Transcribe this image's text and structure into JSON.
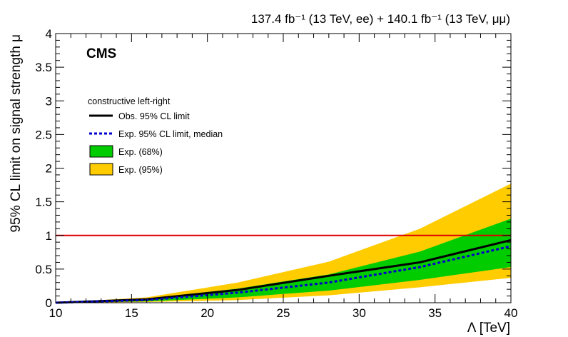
{
  "header": {
    "luminosity_label": "137.4 fb⁻¹ (13 TeV, ee) + 140.1 fb⁻¹ (13 TeV, μμ)",
    "experiment_label": "CMS"
  },
  "chart_data": {
    "type": "line",
    "title": "",
    "xlabel": "Λ [TeV]",
    "ylabel": "95% CL limit on signal strength μ",
    "xlim": [
      10,
      40
    ],
    "ylim": [
      0,
      4
    ],
    "x_ticks": [
      "10",
      "15",
      "20",
      "25",
      "30",
      "35",
      "40"
    ],
    "y_ticks": [
      "0",
      "0.5",
      "1",
      "1.5",
      "2",
      "2.5",
      "3",
      "3.5",
      "4"
    ],
    "grid": false,
    "legend_placement": "upper-left",
    "legend_header": "constructive left-right",
    "x": [
      10,
      16,
      22,
      28,
      34,
      40
    ],
    "series": [
      {
        "name": "Obs. 95% CL limit",
        "style": "solid",
        "color": "#000000",
        "values": [
          0.0,
          0.05,
          0.19,
          0.4,
          0.6,
          0.93
        ]
      },
      {
        "name": "Exp. 95% CL limit, median",
        "style": "dotted",
        "color": "#0000cc",
        "values": [
          0.0,
          0.04,
          0.15,
          0.3,
          0.53,
          0.84
        ]
      }
    ],
    "bands": [
      {
        "name": "Exp. (68%)",
        "color": "#00cc00",
        "low": [
          0.0,
          0.02,
          0.08,
          0.18,
          0.34,
          0.53
        ],
        "high": [
          0.0,
          0.06,
          0.21,
          0.42,
          0.76,
          1.25
        ]
      },
      {
        "name": "Exp. (95%)",
        "color": "#ffcc00",
        "low": [
          0.0,
          0.01,
          0.04,
          0.11,
          0.23,
          0.37
        ],
        "high": [
          0.0,
          0.08,
          0.3,
          0.61,
          1.1,
          1.77
        ]
      }
    ],
    "reference_line": {
      "y": 1,
      "color": "#dd0000"
    }
  }
}
